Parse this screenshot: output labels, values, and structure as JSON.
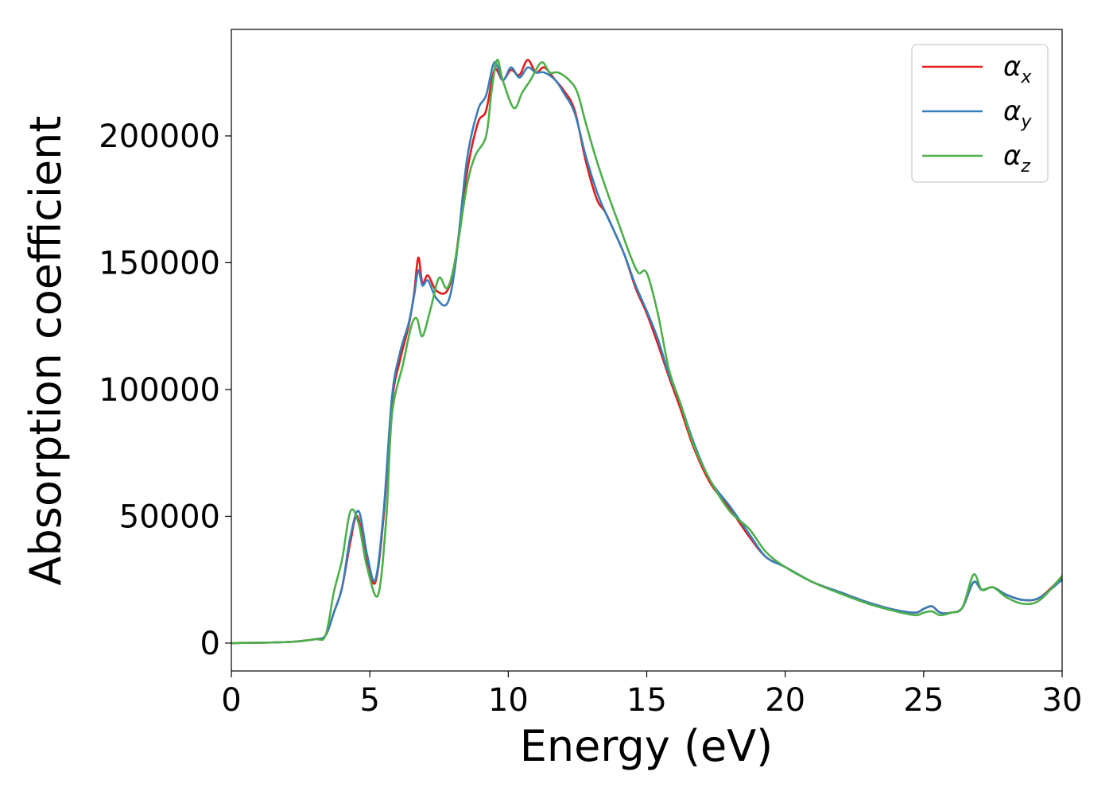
{
  "chart_data": {
    "type": "line",
    "title": "",
    "xlabel": "Energy (eV)",
    "ylabel": "Absorption coefficient",
    "xlim": [
      0,
      30
    ],
    "ylim": [
      -11000,
      242000
    ],
    "x_ticks": [
      0,
      5,
      10,
      15,
      20,
      25,
      30
    ],
    "y_ticks": [
      0,
      50000,
      100000,
      150000,
      200000
    ],
    "x_tick_labels": [
      "0",
      "5",
      "10",
      "15",
      "20",
      "25",
      "30"
    ],
    "y_tick_labels": [
      "0",
      "50000",
      "100000",
      "150000",
      "200000"
    ],
    "grid": false,
    "legend_position": "top-right",
    "series": [
      {
        "name": "α",
        "subscript": "x",
        "color": "#e41a1c",
        "points": [
          [
            0,
            0
          ],
          [
            2,
            400
          ],
          [
            3,
            1500
          ],
          [
            3.4,
            3000
          ],
          [
            3.7,
            12000
          ],
          [
            4.0,
            22000
          ],
          [
            4.3,
            40000
          ],
          [
            4.55,
            50000
          ],
          [
            4.9,
            33000
          ],
          [
            5.2,
            24000
          ],
          [
            5.5,
            50000
          ],
          [
            5.8,
            95000
          ],
          [
            6.1,
            112000
          ],
          [
            6.4,
            125000
          ],
          [
            6.6,
            138000
          ],
          [
            6.75,
            152000
          ],
          [
            6.9,
            142000
          ],
          [
            7.1,
            145000
          ],
          [
            7.4,
            139000
          ],
          [
            7.8,
            139000
          ],
          [
            8.1,
            152000
          ],
          [
            8.5,
            185000
          ],
          [
            8.9,
            205000
          ],
          [
            9.2,
            210000
          ],
          [
            9.5,
            226000
          ],
          [
            9.8,
            222000
          ],
          [
            10.1,
            226000
          ],
          [
            10.4,
            224000
          ],
          [
            10.7,
            230000
          ],
          [
            11.0,
            225000
          ],
          [
            11.3,
            227000
          ],
          [
            11.7,
            222000
          ],
          [
            12.0,
            218000
          ],
          [
            12.4,
            210000
          ],
          [
            12.8,
            190000
          ],
          [
            13.2,
            175000
          ],
          [
            13.5,
            170000
          ],
          [
            13.8,
            163000
          ],
          [
            14.2,
            153000
          ],
          [
            14.6,
            140000
          ],
          [
            15.0,
            130000
          ],
          [
            15.4,
            118000
          ],
          [
            15.8,
            105000
          ],
          [
            16.2,
            93000
          ],
          [
            16.7,
            77000
          ],
          [
            17.3,
            63000
          ],
          [
            18.0,
            53000
          ],
          [
            18.7,
            42000
          ],
          [
            19.3,
            34000
          ],
          [
            20.0,
            30000
          ],
          [
            21.0,
            24000
          ],
          [
            22.0,
            20000
          ],
          [
            23.0,
            16000
          ],
          [
            24.0,
            13000
          ],
          [
            24.7,
            12000
          ],
          [
            25.0,
            13500
          ],
          [
            25.3,
            14500
          ],
          [
            25.6,
            12000
          ],
          [
            26.0,
            12000
          ],
          [
            26.4,
            14000
          ],
          [
            26.8,
            24000
          ],
          [
            27.1,
            21000
          ],
          [
            27.5,
            22000
          ],
          [
            28.0,
            19000
          ],
          [
            28.6,
            17000
          ],
          [
            29.2,
            18000
          ],
          [
            30,
            26000
          ]
        ]
      },
      {
        "name": "α",
        "subscript": "y",
        "color": "#377eb8",
        "points": [
          [
            0,
            0
          ],
          [
            2,
            400
          ],
          [
            3,
            1500
          ],
          [
            3.4,
            3000
          ],
          [
            3.7,
            12000
          ],
          [
            4.0,
            22000
          ],
          [
            4.3,
            42000
          ],
          [
            4.6,
            52000
          ],
          [
            4.9,
            35000
          ],
          [
            5.2,
            25000
          ],
          [
            5.5,
            52000
          ],
          [
            5.8,
            97000
          ],
          [
            6.1,
            115000
          ],
          [
            6.4,
            126000
          ],
          [
            6.6,
            137000
          ],
          [
            6.75,
            147000
          ],
          [
            6.9,
            141000
          ],
          [
            7.1,
            143000
          ],
          [
            7.4,
            136000
          ],
          [
            7.8,
            134000
          ],
          [
            8.1,
            150000
          ],
          [
            8.5,
            190000
          ],
          [
            8.9,
            210000
          ],
          [
            9.2,
            216000
          ],
          [
            9.5,
            229000
          ],
          [
            9.8,
            222000
          ],
          [
            10.1,
            227000
          ],
          [
            10.4,
            223000
          ],
          [
            10.7,
            227000
          ],
          [
            11.0,
            225000
          ],
          [
            11.3,
            225000
          ],
          [
            11.7,
            222000
          ],
          [
            12.0,
            217000
          ],
          [
            12.4,
            209000
          ],
          [
            12.8,
            192000
          ],
          [
            13.2,
            178000
          ],
          [
            13.5,
            170000
          ],
          [
            13.8,
            163000
          ],
          [
            14.2,
            153000
          ],
          [
            14.6,
            141000
          ],
          [
            15.0,
            131000
          ],
          [
            15.4,
            120000
          ],
          [
            15.8,
            106000
          ],
          [
            16.2,
            95000
          ],
          [
            16.7,
            79000
          ],
          [
            17.3,
            64000
          ],
          [
            18.0,
            54000
          ],
          [
            18.7,
            43000
          ],
          [
            19.3,
            34000
          ],
          [
            20.0,
            30000
          ],
          [
            21.0,
            24000
          ],
          [
            22.0,
            20000
          ],
          [
            23.0,
            16000
          ],
          [
            24.0,
            13000
          ],
          [
            24.7,
            12000
          ],
          [
            25.0,
            13500
          ],
          [
            25.3,
            14500
          ],
          [
            25.6,
            12000
          ],
          [
            26.0,
            12000
          ],
          [
            26.4,
            14000
          ],
          [
            26.8,
            24000
          ],
          [
            27.1,
            21000
          ],
          [
            27.5,
            22000
          ],
          [
            28.0,
            19000
          ],
          [
            28.6,
            17000
          ],
          [
            29.2,
            18000
          ],
          [
            30,
            25000
          ]
        ]
      },
      {
        "name": "α",
        "subscript": "z",
        "color": "#4daf4a",
        "points": [
          [
            0,
            0
          ],
          [
            2,
            400
          ],
          [
            3,
            1500
          ],
          [
            3.4,
            3000
          ],
          [
            3.7,
            20000
          ],
          [
            4.0,
            33000
          ],
          [
            4.3,
            52000
          ],
          [
            4.6,
            47000
          ],
          [
            4.9,
            30000
          ],
          [
            5.3,
            19000
          ],
          [
            5.6,
            50000
          ],
          [
            5.8,
            90000
          ],
          [
            6.2,
            110000
          ],
          [
            6.5,
            125000
          ],
          [
            6.7,
            128000
          ],
          [
            6.9,
            121000
          ],
          [
            7.2,
            132000
          ],
          [
            7.5,
            144000
          ],
          [
            7.8,
            140000
          ],
          [
            8.1,
            152000
          ],
          [
            8.5,
            180000
          ],
          [
            8.8,
            192000
          ],
          [
            9.2,
            200000
          ],
          [
            9.4,
            218000
          ],
          [
            9.6,
            230000
          ],
          [
            9.8,
            222000
          ],
          [
            10.2,
            211000
          ],
          [
            10.5,
            217000
          ],
          [
            10.8,
            222000
          ],
          [
            11.2,
            229000
          ],
          [
            11.5,
            225000
          ],
          [
            11.8,
            225000
          ],
          [
            12.2,
            222000
          ],
          [
            12.5,
            217000
          ],
          [
            12.8,
            205000
          ],
          [
            13.2,
            190000
          ],
          [
            13.6,
            177000
          ],
          [
            14.0,
            165000
          ],
          [
            14.4,
            153000
          ],
          [
            14.7,
            146000
          ],
          [
            15.0,
            146000
          ],
          [
            15.4,
            130000
          ],
          [
            15.8,
            108000
          ],
          [
            16.2,
            95000
          ],
          [
            16.7,
            78000
          ],
          [
            17.3,
            64000
          ],
          [
            18.0,
            52000
          ],
          [
            18.7,
            45000
          ],
          [
            19.3,
            36000
          ],
          [
            20.0,
            30000
          ],
          [
            21.0,
            24000
          ],
          [
            22.0,
            19500
          ],
          [
            23.0,
            15500
          ],
          [
            24.0,
            12500
          ],
          [
            24.7,
            11000
          ],
          [
            25.0,
            12000
          ],
          [
            25.3,
            12500
          ],
          [
            25.6,
            11000
          ],
          [
            26.0,
            12000
          ],
          [
            26.4,
            14000
          ],
          [
            26.8,
            27000
          ],
          [
            27.1,
            21000
          ],
          [
            27.5,
            22000
          ],
          [
            28.0,
            18000
          ],
          [
            28.6,
            15500
          ],
          [
            29.2,
            17000
          ],
          [
            30,
            26500
          ]
        ]
      }
    ]
  }
}
